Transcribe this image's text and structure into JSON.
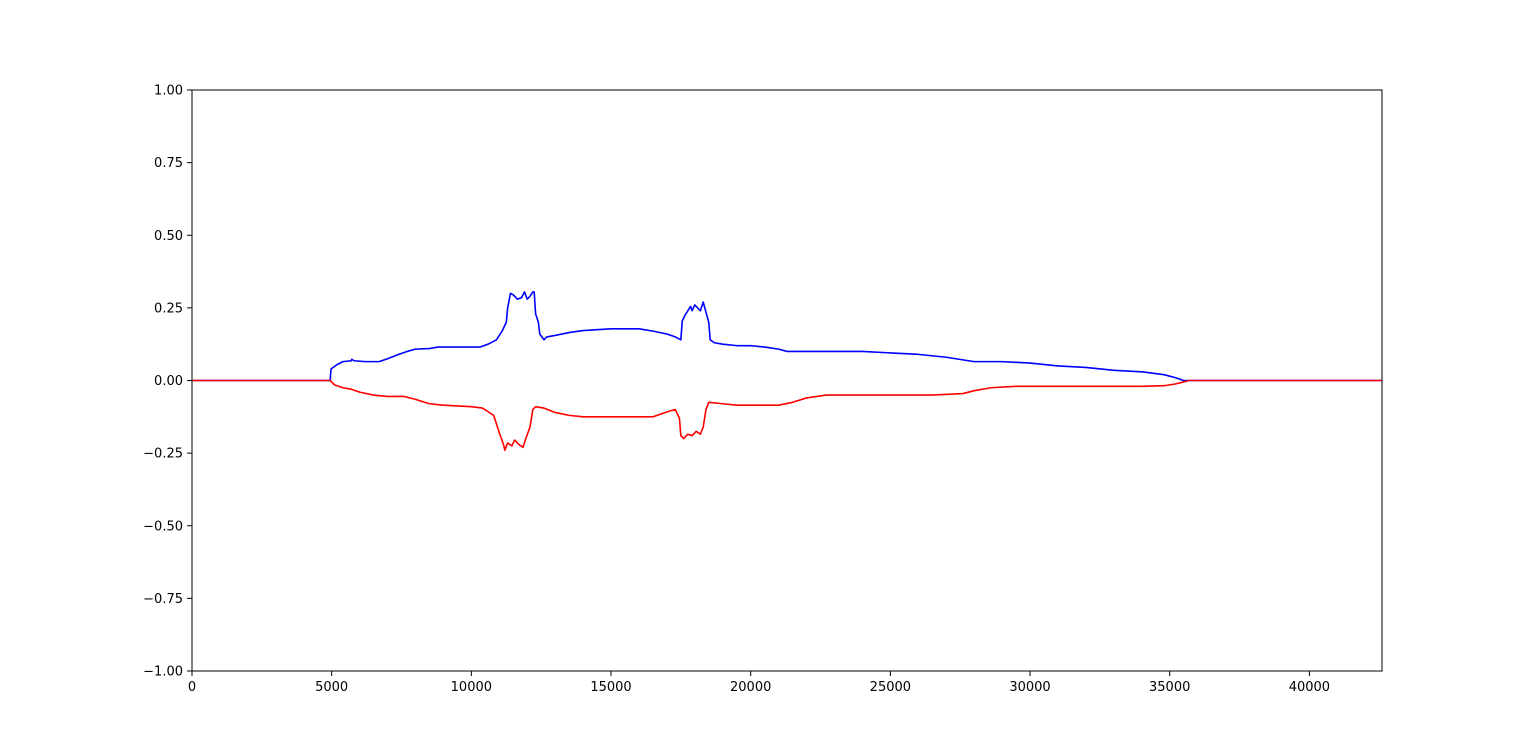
{
  "chart_data": {
    "type": "line",
    "title": "",
    "xlabel": "",
    "ylabel": "",
    "xlim": [
      0,
      42600
    ],
    "ylim": [
      -1.0,
      1.0
    ],
    "grid": false,
    "x_ticks": [
      0,
      5000,
      10000,
      15000,
      20000,
      25000,
      30000,
      35000,
      40000
    ],
    "x_tick_labels": [
      "0",
      "5000",
      "10000",
      "15000",
      "20000",
      "25000",
      "30000",
      "35000",
      "40000"
    ],
    "y_ticks": [
      1.0,
      0.75,
      0.5,
      0.25,
      0.0,
      -0.25,
      -0.5,
      -0.75,
      -1.0
    ],
    "y_tick_labels": [
      "1.00",
      "0.75",
      "0.50",
      "0.25",
      "0.00",
      "−0.25",
      "−0.50",
      "−0.75",
      "−1.00"
    ],
    "series": [
      {
        "color": "#0000ff",
        "points": [
          [
            0,
            0.0
          ],
          [
            4950,
            0.0
          ],
          [
            4960,
            0.02
          ],
          [
            4980,
            0.04
          ],
          [
            5200,
            0.055
          ],
          [
            5400,
            0.065
          ],
          [
            5700,
            0.068
          ],
          [
            5720,
            0.073
          ],
          [
            5800,
            0.068
          ],
          [
            6200,
            0.065
          ],
          [
            6700,
            0.065
          ],
          [
            7000,
            0.075
          ],
          [
            7400,
            0.09
          ],
          [
            7700,
            0.1
          ],
          [
            8000,
            0.108
          ],
          [
            8500,
            0.11
          ],
          [
            8800,
            0.115
          ],
          [
            9500,
            0.115
          ],
          [
            10300,
            0.115
          ],
          [
            10600,
            0.125
          ],
          [
            10900,
            0.14
          ],
          [
            11100,
            0.17
          ],
          [
            11250,
            0.2
          ],
          [
            11300,
            0.25
          ],
          [
            11400,
            0.3
          ],
          [
            11500,
            0.295
          ],
          [
            11650,
            0.28
          ],
          [
            11800,
            0.285
          ],
          [
            11900,
            0.305
          ],
          [
            12000,
            0.28
          ],
          [
            12100,
            0.29
          ],
          [
            12200,
            0.305
          ],
          [
            12250,
            0.305
          ],
          [
            12300,
            0.23
          ],
          [
            12400,
            0.2
          ],
          [
            12450,
            0.16
          ],
          [
            12600,
            0.14
          ],
          [
            12700,
            0.15
          ],
          [
            13000,
            0.155
          ],
          [
            13500,
            0.165
          ],
          [
            14000,
            0.172
          ],
          [
            14500,
            0.175
          ],
          [
            15000,
            0.178
          ],
          [
            16000,
            0.178
          ],
          [
            16500,
            0.17
          ],
          [
            17000,
            0.16
          ],
          [
            17300,
            0.15
          ],
          [
            17500,
            0.14
          ],
          [
            17550,
            0.205
          ],
          [
            17650,
            0.225
          ],
          [
            17750,
            0.24
          ],
          [
            17850,
            0.255
          ],
          [
            17900,
            0.24
          ],
          [
            18000,
            0.26
          ],
          [
            18100,
            0.25
          ],
          [
            18200,
            0.24
          ],
          [
            18300,
            0.27
          ],
          [
            18400,
            0.235
          ],
          [
            18500,
            0.2
          ],
          [
            18550,
            0.14
          ],
          [
            18700,
            0.13
          ],
          [
            19000,
            0.125
          ],
          [
            19500,
            0.12
          ],
          [
            20000,
            0.12
          ],
          [
            20500,
            0.115
          ],
          [
            21000,
            0.108
          ],
          [
            21300,
            0.1
          ],
          [
            22000,
            0.1
          ],
          [
            24000,
            0.1
          ],
          [
            25000,
            0.095
          ],
          [
            26000,
            0.09
          ],
          [
            27000,
            0.08
          ],
          [
            28000,
            0.065
          ],
          [
            29000,
            0.065
          ],
          [
            30000,
            0.06
          ],
          [
            31000,
            0.05
          ],
          [
            32000,
            0.045
          ],
          [
            33000,
            0.035
          ],
          [
            34000,
            0.03
          ],
          [
            34800,
            0.02
          ],
          [
            35200,
            0.01
          ],
          [
            35500,
            0.0
          ],
          [
            42600,
            0.0
          ]
        ]
      },
      {
        "color": "#ff0000",
        "points": [
          [
            0,
            0.0
          ],
          [
            4950,
            0.0
          ],
          [
            5100,
            -0.015
          ],
          [
            5400,
            -0.025
          ],
          [
            5700,
            -0.03
          ],
          [
            6000,
            -0.04
          ],
          [
            6500,
            -0.05
          ],
          [
            7000,
            -0.055
          ],
          [
            7600,
            -0.055
          ],
          [
            8000,
            -0.065
          ],
          [
            8500,
            -0.08
          ],
          [
            9000,
            -0.085
          ],
          [
            10000,
            -0.09
          ],
          [
            10400,
            -0.095
          ],
          [
            10800,
            -0.12
          ],
          [
            11000,
            -0.18
          ],
          [
            11150,
            -0.22
          ],
          [
            11200,
            -0.24
          ],
          [
            11300,
            -0.215
          ],
          [
            11450,
            -0.225
          ],
          [
            11550,
            -0.205
          ],
          [
            11700,
            -0.22
          ],
          [
            11850,
            -0.23
          ],
          [
            11950,
            -0.2
          ],
          [
            12100,
            -0.16
          ],
          [
            12200,
            -0.1
          ],
          [
            12300,
            -0.09
          ],
          [
            12600,
            -0.095
          ],
          [
            13000,
            -0.11
          ],
          [
            13500,
            -0.12
          ],
          [
            14000,
            -0.125
          ],
          [
            15000,
            -0.125
          ],
          [
            16500,
            -0.125
          ],
          [
            16800,
            -0.115
          ],
          [
            17100,
            -0.105
          ],
          [
            17300,
            -0.1
          ],
          [
            17450,
            -0.13
          ],
          [
            17500,
            -0.19
          ],
          [
            17600,
            -0.2
          ],
          [
            17750,
            -0.185
          ],
          [
            17900,
            -0.19
          ],
          [
            18050,
            -0.175
          ],
          [
            18200,
            -0.185
          ],
          [
            18300,
            -0.16
          ],
          [
            18400,
            -0.1
          ],
          [
            18500,
            -0.075
          ],
          [
            19000,
            -0.08
          ],
          [
            19500,
            -0.085
          ],
          [
            20000,
            -0.085
          ],
          [
            21000,
            -0.085
          ],
          [
            21500,
            -0.075
          ],
          [
            22000,
            -0.06
          ],
          [
            22700,
            -0.05
          ],
          [
            23500,
            -0.05
          ],
          [
            25000,
            -0.05
          ],
          [
            26500,
            -0.05
          ],
          [
            27600,
            -0.045
          ],
          [
            28000,
            -0.035
          ],
          [
            28600,
            -0.025
          ],
          [
            29500,
            -0.02
          ],
          [
            31000,
            -0.02
          ],
          [
            32500,
            -0.02
          ],
          [
            34000,
            -0.02
          ],
          [
            34800,
            -0.018
          ],
          [
            35200,
            -0.012
          ],
          [
            35500,
            -0.005
          ],
          [
            35700,
            0.0
          ],
          [
            42600,
            0.0
          ]
        ]
      }
    ]
  }
}
